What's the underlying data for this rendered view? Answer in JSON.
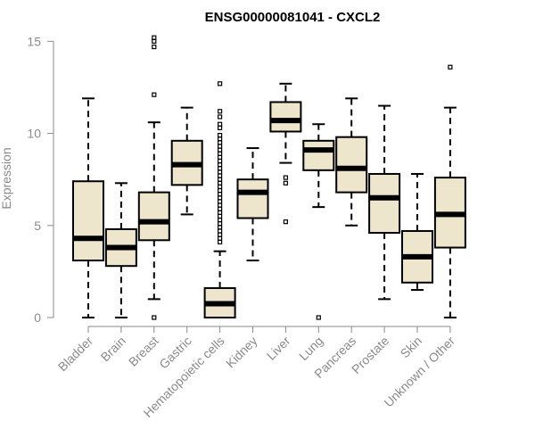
{
  "chart_data": {
    "type": "boxplot",
    "title": "ENSG00000081041 - CXCL2",
    "xlabel": "",
    "ylabel": "Expression",
    "ylim": [
      0,
      15.5
    ],
    "yticks": [
      0,
      5,
      10,
      15
    ],
    "box_color": "#ede6cc",
    "categories": [
      "Bladder",
      "Brain",
      "Breast",
      "Gastric",
      "Hematopoietic cells",
      "Kidney",
      "Liver",
      "Lung",
      "Pancreas",
      "Prostate",
      "Skin",
      "Unknown / Other"
    ],
    "series": [
      {
        "name": "Bladder",
        "min": 0.0,
        "q1": 3.1,
        "median": 4.3,
        "q3": 7.4,
        "max": 11.9,
        "outliers": []
      },
      {
        "name": "Brain",
        "min": 0.0,
        "q1": 2.8,
        "median": 3.8,
        "q3": 4.8,
        "max": 7.3,
        "outliers": []
      },
      {
        "name": "Breast",
        "min": 1.0,
        "q1": 4.2,
        "median": 5.2,
        "q3": 6.8,
        "max": 10.6,
        "outliers": [
          0.0,
          12.1,
          14.7,
          15.0,
          15.2
        ]
      },
      {
        "name": "Gastric",
        "min": 5.6,
        "q1": 7.2,
        "median": 8.3,
        "q3": 9.6,
        "max": 11.4,
        "outliers": []
      },
      {
        "name": "Hematopoietic cells",
        "min": 0.0,
        "q1": 0.0,
        "median": 0.75,
        "q3": 1.6,
        "max": 3.6,
        "outliers": [
          4.1,
          4.3,
          4.5,
          4.7,
          4.9,
          5.1,
          5.3,
          5.5,
          5.7,
          5.9,
          6.1,
          6.3,
          6.5,
          6.7,
          6.9,
          7.1,
          7.3,
          7.5,
          7.7,
          7.9,
          8.1,
          8.3,
          8.5,
          8.7,
          8.9,
          9.1,
          9.3,
          9.5,
          9.7,
          9.9,
          10.3,
          10.5,
          10.9,
          11.2,
          12.7
        ]
      },
      {
        "name": "Kidney",
        "min": 3.1,
        "q1": 5.4,
        "median": 6.8,
        "q3": 7.5,
        "max": 9.2,
        "outliers": []
      },
      {
        "name": "Liver",
        "min": 8.4,
        "q1": 10.1,
        "median": 10.7,
        "q3": 11.7,
        "max": 12.7,
        "outliers": [
          5.2,
          7.3,
          7.6
        ]
      },
      {
        "name": "Lung",
        "min": 6.0,
        "q1": 8.0,
        "median": 9.1,
        "q3": 9.6,
        "max": 10.5,
        "outliers": [
          0.0
        ]
      },
      {
        "name": "Pancreas",
        "min": 5.0,
        "q1": 6.8,
        "median": 8.1,
        "q3": 9.8,
        "max": 11.9,
        "outliers": []
      },
      {
        "name": "Prostate",
        "min": 1.0,
        "q1": 4.6,
        "median": 6.5,
        "q3": 7.8,
        "max": 11.5,
        "outliers": []
      },
      {
        "name": "Skin",
        "min": 1.5,
        "q1": 1.9,
        "median": 3.3,
        "q3": 4.7,
        "max": 7.8,
        "outliers": []
      },
      {
        "name": "Unknown / Other",
        "min": 0.0,
        "q1": 3.8,
        "median": 5.6,
        "q3": 7.6,
        "max": 11.4,
        "outliers": [
          13.6
        ]
      }
    ]
  }
}
